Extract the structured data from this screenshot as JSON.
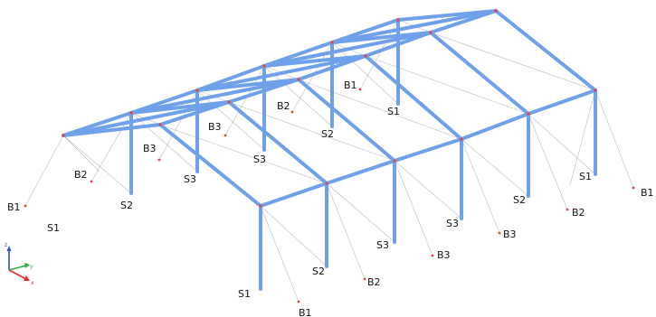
{
  "colors": {
    "member": "#6fa1ea",
    "brace": "#9aa0a8",
    "node": "#e8423a",
    "text": "#111111",
    "axis_x": "#e03030",
    "axis_y": "#2fae3a",
    "axis_z": "#2b4fd8"
  },
  "labels": {
    "s1_a": "S1",
    "s1_b": "S1",
    "s1_c": "S1",
    "s1_d": "S1",
    "s2_a": "S2",
    "s2_b": "S2",
    "s2_c": "S2",
    "s2_d": "S2",
    "s3_a": "S3",
    "s3_b": "S3",
    "s3_c": "S3",
    "s3_d": "S3",
    "b1_a": "B1",
    "b1_b": "B1",
    "b1_c": "B1",
    "b1_d": "B1",
    "b2_a": "B2",
    "b2_b": "B2",
    "b2_c": "B2",
    "b2_d": "B2",
    "b3_a": "B3",
    "b3_b": "B3",
    "b3_c": "B3",
    "b3_d": "B3"
  },
  "axes": {
    "x": "x",
    "y": "y",
    "z": "z"
  }
}
